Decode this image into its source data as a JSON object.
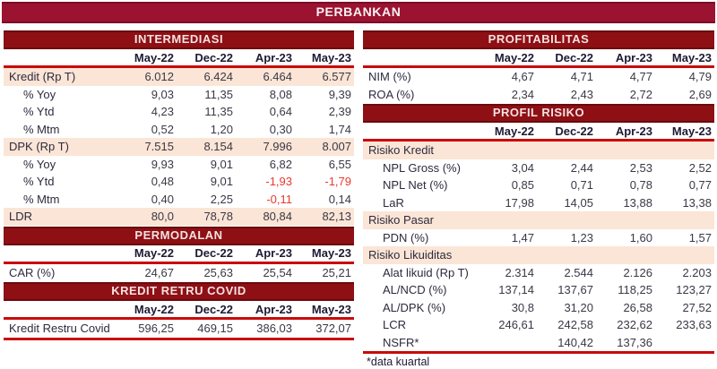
{
  "page_title": "PERBANKAN",
  "footnote": "*data kuartal",
  "columns": [
    "May-22",
    "Dec-22",
    "Apr-23",
    "May-23"
  ],
  "colors": {
    "banner_bg": "#9b1331",
    "banner_border": "#7b0c27",
    "band_bg": "#8e1014",
    "band_border": "#6b090d",
    "rule_red": "#c90a0a",
    "highlight_row": "#fbe5d6",
    "negative_value": "#e8392f",
    "header_text": "#1e1a33",
    "body_text": "#3a3845"
  },
  "left_tables": [
    {
      "title": "INTERMEDIASI",
      "bottom_rule": false,
      "rows": [
        {
          "label": "Kredit (Rp T)",
          "indent": false,
          "highlight": true,
          "values": [
            "6.012",
            "6.424",
            "6.464",
            "6.577"
          ]
        },
        {
          "label": "% Yoy",
          "indent": true,
          "highlight": false,
          "values": [
            "9,03",
            "11,35",
            "8,08",
            "9,39"
          ]
        },
        {
          "label": "% Ytd",
          "indent": true,
          "highlight": false,
          "values": [
            "4,23",
            "11,35",
            "0,64",
            "2,39"
          ]
        },
        {
          "label": "% Mtm",
          "indent": true,
          "highlight": false,
          "values": [
            "0,52",
            "1,20",
            "0,30",
            "1,74"
          ]
        },
        {
          "label": "DPK (Rp T)",
          "indent": false,
          "highlight": true,
          "values": [
            "7.515",
            "8.154",
            "7.996",
            "8.007"
          ]
        },
        {
          "label": "% Yoy",
          "indent": true,
          "highlight": false,
          "values": [
            "9,93",
            "9,01",
            "6,82",
            "6,55"
          ]
        },
        {
          "label": "% Ytd",
          "indent": true,
          "highlight": false,
          "values": [
            "0,48",
            "9,01",
            "-1,93",
            "-1,79"
          ]
        },
        {
          "label": "% Mtm",
          "indent": true,
          "highlight": false,
          "values": [
            "0,40",
            "2,25",
            "-0,11",
            "0,14"
          ]
        },
        {
          "label": "LDR",
          "indent": false,
          "highlight": true,
          "values": [
            "80,0",
            "78,78",
            "80,84",
            "82,13"
          ]
        }
      ]
    },
    {
      "title": "PERMODALAN",
      "bottom_rule": false,
      "rows": [
        {
          "label": "CAR (%)",
          "indent": false,
          "highlight": false,
          "values": [
            "24,67",
            "25,63",
            "25,54",
            "25,21"
          ]
        }
      ]
    },
    {
      "title": "KREDIT RETRU COVID",
      "bottom_rule": true,
      "rows": [
        {
          "label": "Kredit Restru Covid",
          "indent": false,
          "highlight": false,
          "values": [
            "596,25",
            "469,15",
            "386,03",
            "372,07"
          ]
        }
      ]
    }
  ],
  "right_tables": [
    {
      "title": "PROFITABILITAS",
      "bottom_rule": false,
      "rows": [
        {
          "label": "NIM (%)",
          "indent": false,
          "highlight": false,
          "values": [
            "4,67",
            "4,71",
            "4,77",
            "4,79"
          ]
        },
        {
          "label": "ROA (%)",
          "indent": false,
          "highlight": false,
          "values": [
            "2,34",
            "2,43",
            "2,72",
            "2,69"
          ]
        }
      ]
    },
    {
      "title": "PROFIL RISIKO",
      "bottom_rule": true,
      "rows": [
        {
          "label": "Risiko Kredit",
          "indent": false,
          "highlight": true,
          "values": [
            "",
            "",
            "",
            ""
          ]
        },
        {
          "label": "NPL Gross (%)",
          "indent": true,
          "highlight": false,
          "values": [
            "3,04",
            "2,44",
            "2,53",
            "2,52"
          ]
        },
        {
          "label": "NPL Net (%)",
          "indent": true,
          "highlight": false,
          "values": [
            "0,85",
            "0,71",
            "0,78",
            "0,77"
          ]
        },
        {
          "label": "LaR",
          "indent": true,
          "highlight": false,
          "values": [
            "17,98",
            "14,05",
            "13,88",
            "13,38"
          ]
        },
        {
          "label": "Risiko Pasar",
          "indent": false,
          "highlight": true,
          "values": [
            "",
            "",
            "",
            ""
          ]
        },
        {
          "label": "PDN (%)",
          "indent": true,
          "highlight": false,
          "values": [
            "1,47",
            "1,23",
            "1,60",
            "1,57"
          ]
        },
        {
          "label": "Risiko Likuiditas",
          "indent": false,
          "highlight": true,
          "values": [
            "",
            "",
            "",
            ""
          ]
        },
        {
          "label": "Alat likuid (Rp T)",
          "indent": true,
          "highlight": false,
          "values": [
            "2.314",
            "2.544",
            "2.126",
            "2.203"
          ]
        },
        {
          "label": "AL/NCD (%)",
          "indent": true,
          "highlight": false,
          "values": [
            "137,14",
            "137,67",
            "118,25",
            "123,27"
          ]
        },
        {
          "label": "AL/DPK (%)",
          "indent": true,
          "highlight": false,
          "values": [
            "30,8",
            "31,20",
            "26,58",
            "27,52"
          ]
        },
        {
          "label": "LCR",
          "indent": true,
          "highlight": false,
          "values": [
            "246,61",
            "242,58",
            "232,62",
            "233,63"
          ]
        },
        {
          "label": "NSFR*",
          "indent": true,
          "highlight": false,
          "values": [
            "",
            "140,42",
            "137,36",
            ""
          ]
        }
      ]
    }
  ]
}
